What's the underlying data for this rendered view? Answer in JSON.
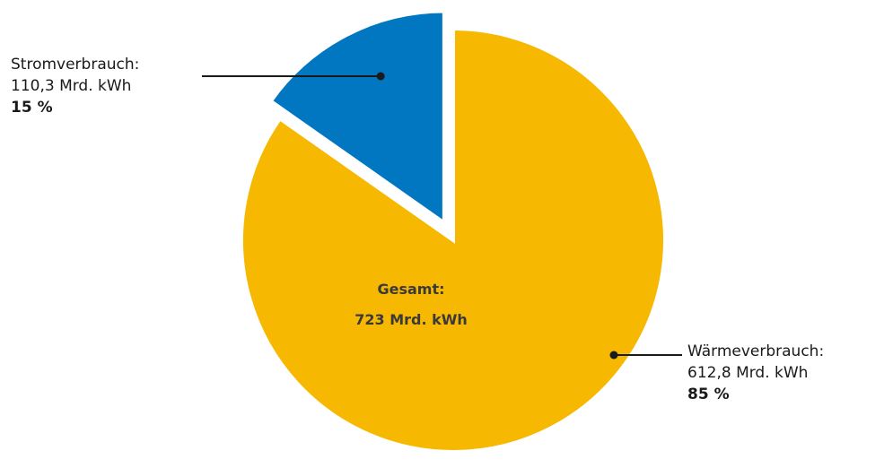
{
  "chart_data": {
    "type": "pie",
    "center_label": {
      "title": "Gesamt:",
      "value": "723 Mrd. kWh"
    },
    "slices": [
      {
        "name": "Stromverbrauch:",
        "value": 110.3,
        "value_text": "110,3 Mrd. kWh",
        "percent": 15,
        "percent_text": "15 %",
        "color": "#0077c0",
        "exploded": true
      },
      {
        "name": "Wärmeverbrauch:",
        "value": 612.8,
        "value_text": "612,8 Mrd. kWh",
        "percent": 85,
        "percent_text": "85 %",
        "color": "#f6b800",
        "exploded": false
      }
    ],
    "total": 723
  }
}
